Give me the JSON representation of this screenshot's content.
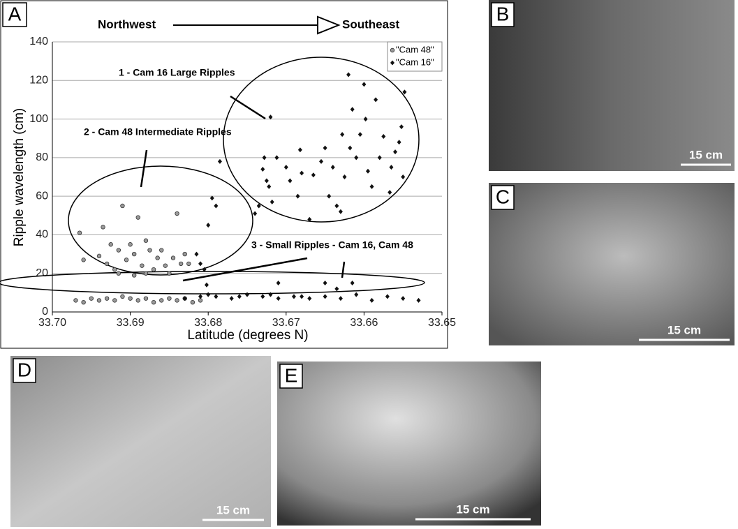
{
  "chart_data": {
    "type": "scatter",
    "panel_label": "A",
    "direction": [
      "Northwest",
      "Southeast"
    ],
    "xlabel": "Latitude (degrees N)",
    "ylabel": "Ripple wavelength (cm)",
    "xlim": [
      33.7,
      33.65
    ],
    "xticks": [
      {
        "value": 33.7,
        "label": "33.70"
      },
      33.69,
      33.68,
      33.67,
      33.66,
      33.65
    ],
    "ylim": [
      0,
      140
    ],
    "yticks": [
      0,
      20,
      40,
      60,
      80,
      100,
      120,
      140
    ],
    "grid": true,
    "legend": "upper right",
    "annotations": [
      "1 - Cam 16 Large Ripples",
      "2 - Cam 48 Intermediate Ripples",
      "3 - Small Ripples - Cam 16, Cam 48"
    ],
    "series": [
      {
        "name": "\"Cam 48\"",
        "marker": "circle",
        "color": "#999999",
        "x": [
          33.697,
          33.696,
          33.695,
          33.694,
          33.693,
          33.692,
          33.691,
          33.69,
          33.689,
          33.688,
          33.687,
          33.686,
          33.685,
          33.684,
          33.683,
          33.682,
          33.681,
          33.6965,
          33.696,
          33.694,
          33.6935,
          33.693,
          33.6925,
          33.692,
          33.6915,
          33.691,
          33.6905,
          33.69,
          33.6895,
          33.689,
          33.6885,
          33.688,
          33.6875,
          33.687,
          33.6865,
          33.686,
          33.6855,
          33.685,
          33.6845,
          33.684,
          33.6835,
          33.683,
          33.6825,
          33.6915,
          33.6895,
          33.688
        ],
        "values": [
          6,
          5,
          7,
          6,
          7,
          6,
          8,
          7,
          6,
          7,
          5,
          6,
          7,
          6,
          7,
          5,
          6,
          41,
          27,
          29,
          44,
          25,
          35,
          22,
          32,
          55,
          27,
          35,
          30,
          49,
          24,
          37,
          32,
          22,
          28,
          32,
          24,
          20,
          28,
          51,
          25,
          30,
          25,
          20,
          19,
          20
        ]
      },
      {
        "name": "\"Cam 16\"",
        "marker": "diamond",
        "color": "#111111",
        "x": [
          33.683,
          33.681,
          33.679,
          33.677,
          33.675,
          33.673,
          33.671,
          33.669,
          33.667,
          33.665,
          33.663,
          33.661,
          33.659,
          33.657,
          33.655,
          33.653,
          33.68,
          33.676,
          33.672,
          33.668,
          33.671,
          33.665,
          33.6635,
          33.6615,
          33.6815,
          33.681,
          33.68,
          33.6795,
          33.679,
          33.6785,
          33.6805,
          33.6802,
          33.674,
          33.6735,
          33.673,
          33.6728,
          33.6725,
          33.6722,
          33.672,
          33.6718,
          33.6712,
          33.67,
          33.6695,
          33.6685,
          33.6682,
          33.668,
          33.667,
          33.6665,
          33.6655,
          33.665,
          33.6645,
          33.664,
          33.6635,
          33.663,
          33.6628,
          33.6625,
          33.662,
          33.6618,
          33.6615,
          33.661,
          33.6605,
          33.66,
          33.6598,
          33.6595,
          33.659,
          33.6585,
          33.658,
          33.6575,
          33.6565,
          33.656,
          33.6555,
          33.655,
          33.6548,
          33.6552,
          33.6567
        ],
        "values": [
          7,
          8,
          8,
          7,
          9,
          8,
          7,
          8,
          7,
          8,
          7,
          9,
          6,
          8,
          7,
          6,
          9,
          8,
          9,
          8,
          15,
          15,
          12,
          15,
          30,
          25,
          45,
          59,
          55,
          78,
          22,
          14,
          51,
          55,
          74,
          80,
          68,
          65,
          101,
          57,
          80,
          75,
          68,
          60,
          84,
          72,
          48,
          71,
          78,
          85,
          60,
          75,
          55,
          52,
          92,
          70,
          123,
          85,
          105,
          80,
          92,
          118,
          100,
          73,
          65,
          110,
          80,
          91,
          75,
          83,
          88,
          70,
          114,
          96,
          62
        ]
      }
    ]
  },
  "panels": [
    {
      "label": "B",
      "scale": "15 cm"
    },
    {
      "label": "C",
      "scale": "15 cm"
    },
    {
      "label": "D",
      "scale": "15 cm"
    },
    {
      "label": "E",
      "scale": "15 cm"
    }
  ]
}
